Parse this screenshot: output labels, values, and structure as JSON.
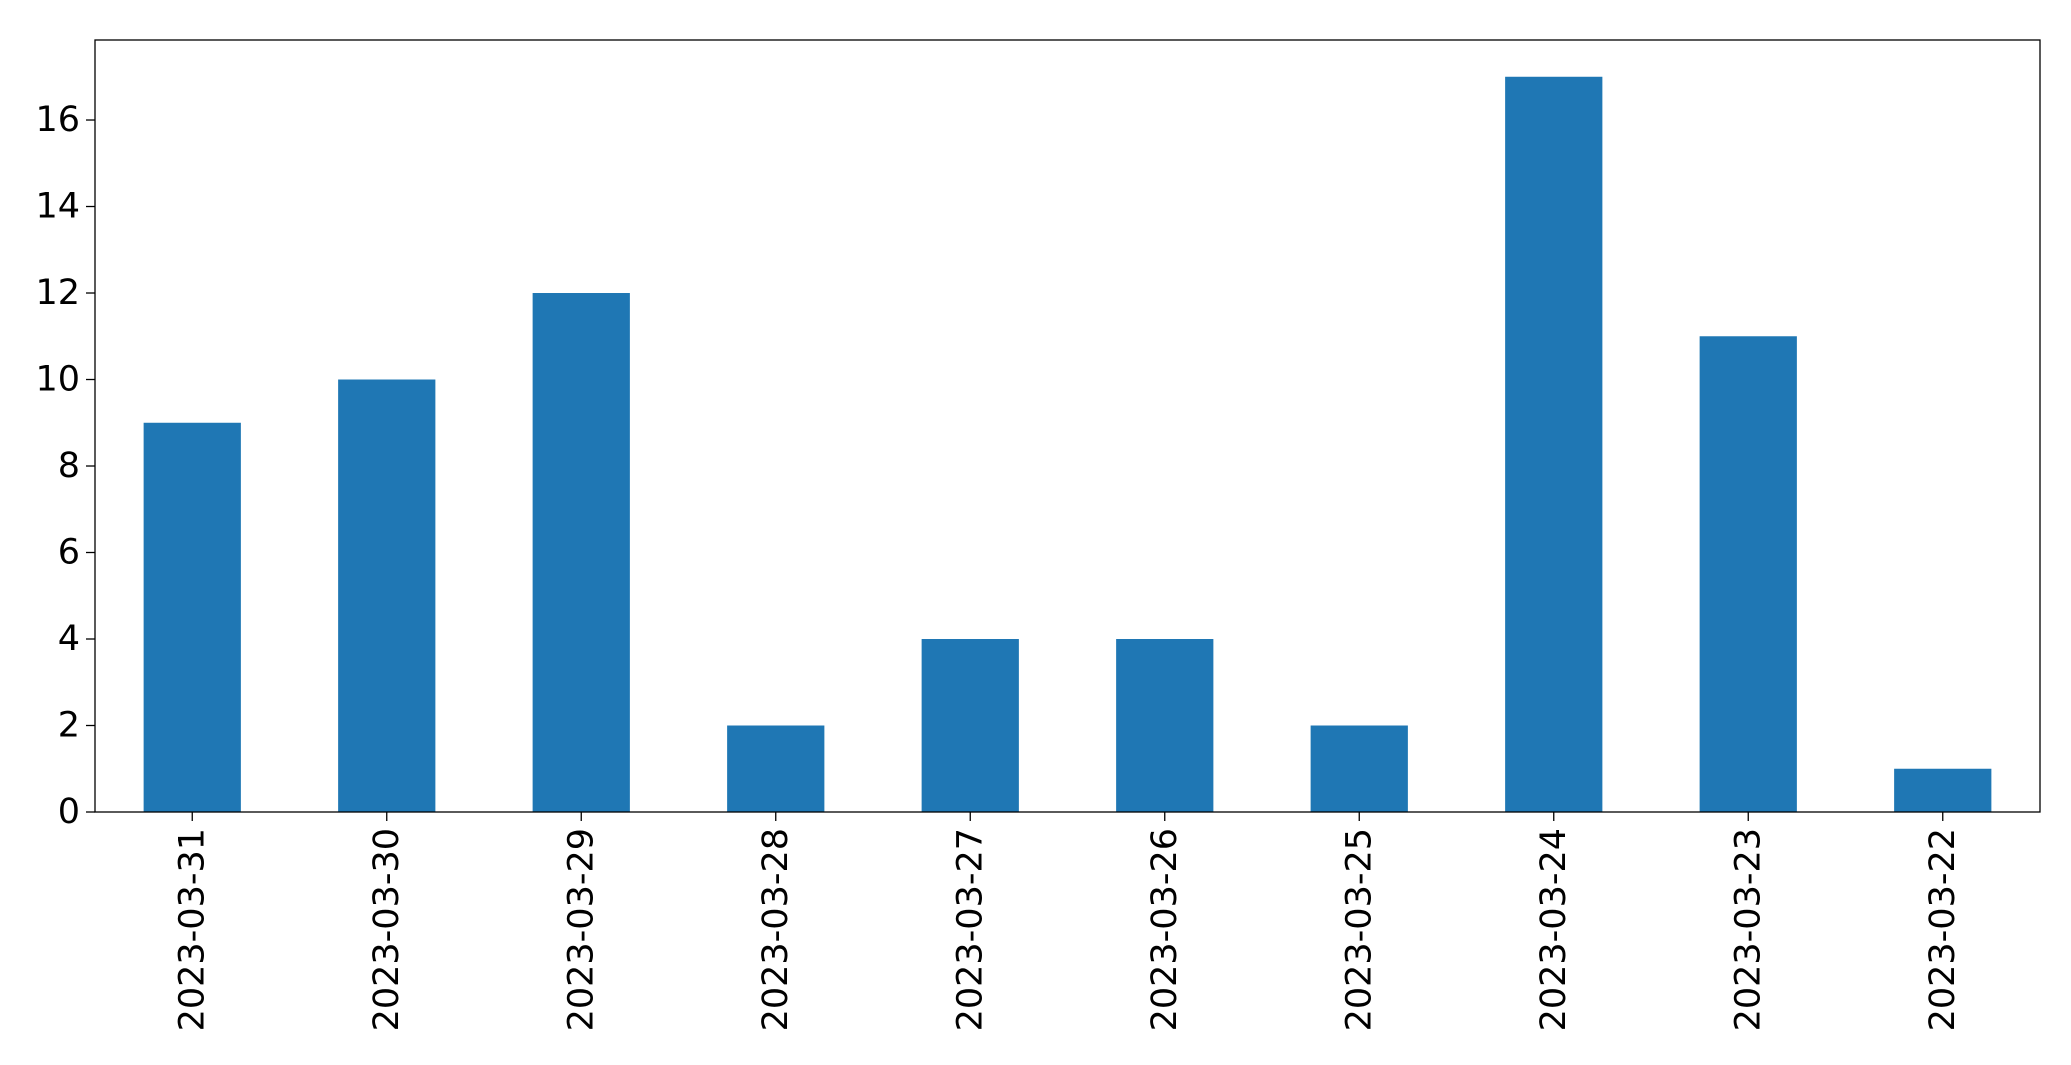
{
  "chart_data": {
    "type": "bar",
    "title": "",
    "xlabel": "",
    "ylabel": "",
    "categories": [
      "2023-03-31",
      "2023-03-30",
      "2023-03-29",
      "2023-03-28",
      "2023-03-27",
      "2023-03-26",
      "2023-03-25",
      "2023-03-24",
      "2023-03-23",
      "2023-03-22"
    ],
    "values": [
      9,
      10,
      12,
      2,
      4,
      4,
      2,
      17,
      11,
      1
    ],
    "ylim": [
      0,
      17.85
    ],
    "yticks": [
      0,
      2,
      4,
      6,
      8,
      10,
      12,
      14,
      16
    ],
    "grid": false,
    "legend": "none",
    "bar_color": "#1f77b4"
  }
}
